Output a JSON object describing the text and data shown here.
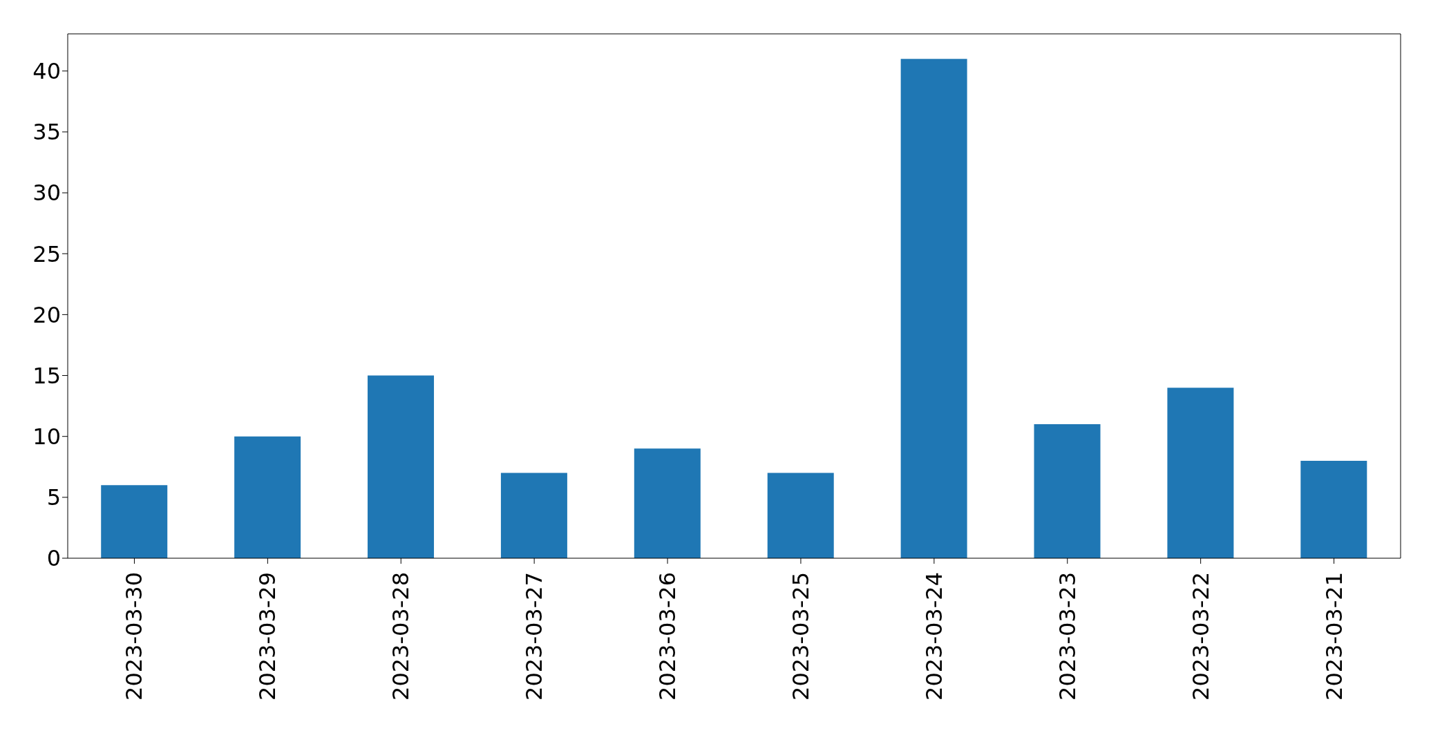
{
  "chart_data": {
    "type": "bar",
    "categories": [
      "2023-03-30",
      "2023-03-29",
      "2023-03-28",
      "2023-03-27",
      "2023-03-26",
      "2023-03-25",
      "2023-03-24",
      "2023-03-23",
      "2023-03-22",
      "2023-03-21"
    ],
    "values": [
      6,
      10,
      15,
      7,
      9,
      7,
      41,
      11,
      14,
      8
    ],
    "color": "#1f77b4",
    "ylim": [
      0,
      43.05
    ],
    "yticks": [
      0,
      5,
      10,
      15,
      20,
      25,
      30,
      35,
      40
    ],
    "grid": false,
    "legend": false
  }
}
